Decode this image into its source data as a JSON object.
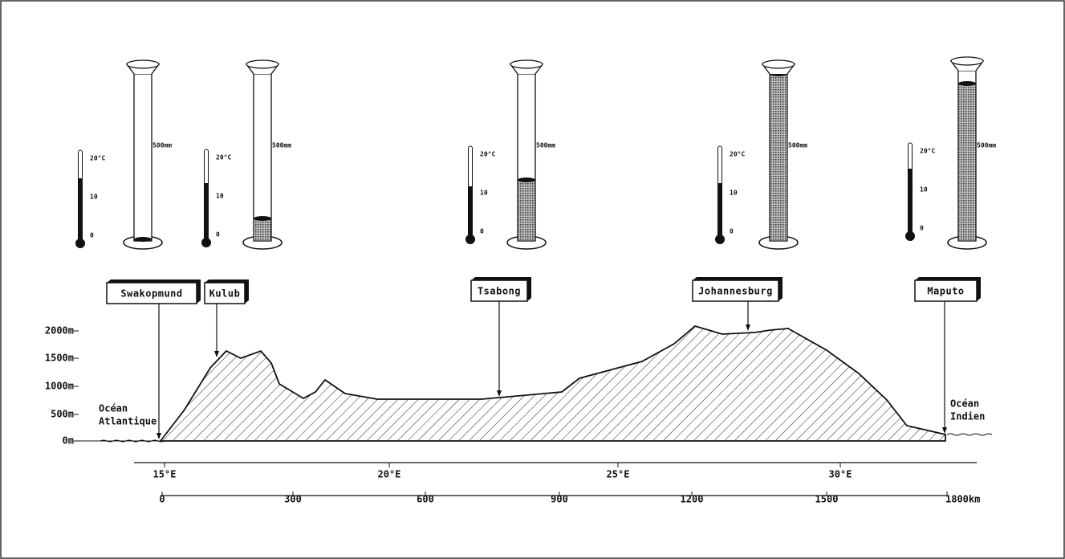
{
  "stations": [
    {
      "name": "Swakopmund",
      "thermometer": {
        "max": "20°C",
        "mid": "10",
        "min": "0"
      },
      "gauge": "500mm"
    },
    {
      "name": "Kulub",
      "thermometer": {
        "max": "20°C",
        "mid": "10",
        "min": "0"
      },
      "gauge": "500mm"
    },
    {
      "name": "Tsabong",
      "thermometer": {
        "max": "20°C",
        "mid": "10",
        "min": "0"
      },
      "gauge": "500mm"
    },
    {
      "name": "Johannesburg",
      "thermometer": {
        "max": "20°C",
        "mid": "10",
        "min": "0"
      },
      "gauge": "500mm"
    },
    {
      "name": "Maputo",
      "thermometer": {
        "max": "20°C",
        "mid": "10",
        "min": "0"
      },
      "gauge": "500mm"
    }
  ],
  "elevation_axis": [
    "2000m",
    "1500m",
    "1000m",
    "500m",
    "0m"
  ],
  "oceans": {
    "west": [
      "Océan",
      "Atlantique"
    ],
    "east": [
      "Océan",
      "Indien"
    ]
  },
  "longitude_axis": [
    "15°E",
    "20°E",
    "25°E",
    "30°E"
  ],
  "distance_axis": [
    "0",
    "300",
    "600",
    "900",
    "1200",
    "1500",
    "1800km"
  ]
}
